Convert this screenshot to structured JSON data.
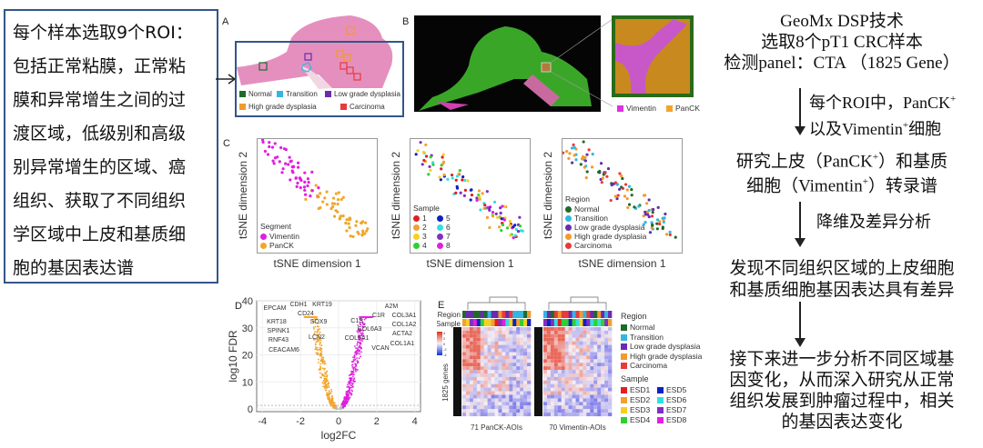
{
  "left_box": {
    "lines": [
      "每个样本选取9个ROI：",
      "包括正常粘膜，正常粘",
      "膜和异常增生之间的过",
      "渡区域，低级别和高级",
      "别异常增生的区域、癌",
      "组织、获取了不同组织",
      "学区域中上皮和基质细",
      "胞的基因表达谱"
    ]
  },
  "panel_a": {
    "label": "A",
    "legend": [
      {
        "name": "Normal",
        "color": "#1e6b2a"
      },
      {
        "name": "Transition",
        "color": "#33b6e0"
      },
      {
        "name": "Low grade dysplasia",
        "color": "#6a2bb0"
      },
      {
        "name": "High grade dysplasia",
        "color": "#f39a2b"
      },
      {
        "name": "Carcinoma",
        "color": "#e83a3a"
      }
    ]
  },
  "panel_b": {
    "label": "B",
    "legend": [
      {
        "name": "Vimentin",
        "color": "#e030e0"
      },
      {
        "name": "PanCK",
        "color": "#f2a52a"
      }
    ]
  },
  "panel_c": {
    "label": "C",
    "plots": [
      {
        "xlabel": "tSNE dimension 1",
        "ylabel": "tSNE dimension 2",
        "legend_title": "Segment",
        "legend": [
          {
            "name": "Vimentin",
            "color": "#e01ee0"
          },
          {
            "name": "PanCK",
            "color": "#f2a52a"
          }
        ]
      },
      {
        "xlabel": "tSNE dimension 1",
        "ylabel": "tSNE dimension 2",
        "legend_title": "Sample",
        "legend": [
          {
            "name": "1",
            "color": "#e02020"
          },
          {
            "name": "2",
            "color": "#f2a030"
          },
          {
            "name": "3",
            "color": "#f5d020"
          },
          {
            "name": "4",
            "color": "#30d030"
          },
          {
            "name": "5",
            "color": "#1020c0"
          },
          {
            "name": "6",
            "color": "#30e0e0"
          },
          {
            "name": "7",
            "color": "#8030c0"
          },
          {
            "name": "8",
            "color": "#e020e0"
          }
        ]
      },
      {
        "xlabel": "tSNE dimension 1",
        "ylabel": "tSNE dimension 2",
        "legend_title": "Region",
        "legend": [
          {
            "name": "Normal",
            "color": "#1e6b2a"
          },
          {
            "name": "Transition",
            "color": "#33b6e0"
          },
          {
            "name": "Low grade dysplasia",
            "color": "#6a2bb0"
          },
          {
            "name": "High grade dysplasia",
            "color": "#f39a2b"
          },
          {
            "name": "Carcinoma",
            "color": "#e83a3a"
          }
        ]
      }
    ]
  },
  "panel_d": {
    "label": "D",
    "chart_data": {
      "type": "scatter",
      "title": "",
      "xlabel": "log2FC",
      "ylabel": "log10 FDR",
      "xlim": [
        -4.3,
        4.3
      ],
      "ylim": [
        -1,
        40
      ],
      "xticks": [
        "-4",
        "-2",
        "0",
        "2",
        "4"
      ],
      "xtick_values": [
        -4,
        -2,
        0,
        2,
        4
      ],
      "yticks": [
        "0",
        "10",
        "20",
        "30",
        "40"
      ],
      "ytick_values": [
        0,
        10,
        20,
        30,
        40
      ],
      "down_color": "#f2a52a",
      "up_color": "#e01ee0",
      "down_genes": [
        "EPCAM",
        "CDH1",
        "KRT19",
        "CD24",
        "KRT18",
        "SOX9",
        "SPINK1",
        "RNF43",
        "LCN2",
        "CEACAM6"
      ],
      "up_genes": [
        "A2M",
        "C1R",
        "COL3A1",
        "C1S",
        "COL1A2",
        "COL6A3",
        "ACTA2",
        "COL5A1",
        "VCAN",
        "COL1A1"
      ]
    }
  },
  "panel_e": {
    "label": "E",
    "row_labels": [
      "Region",
      "Sample"
    ],
    "y_label": "1825 genes",
    "heatmaps": [
      "71 PanCK-AOIs",
      "70 Vimentin-AOIs"
    ],
    "scale_ticks": [
      "4",
      "2",
      "0",
      "-2",
      "-4"
    ],
    "legend_region_title": "Region",
    "legend_region": [
      {
        "name": "Normal",
        "color": "#1e6b2a"
      },
      {
        "name": "Transition",
        "color": "#33b6e0"
      },
      {
        "name": "Low grade dysplasia",
        "color": "#6a2bb0"
      },
      {
        "name": "High grade dysplasia",
        "color": "#f39a2b"
      },
      {
        "name": "Carcinoma",
        "color": "#e83a3a"
      }
    ],
    "legend_sample_title": "Sample",
    "legend_sample": [
      {
        "name": "ESD1",
        "color": "#e02020"
      },
      {
        "name": "ESD5",
        "color": "#1020c0"
      },
      {
        "name": "ESD2",
        "color": "#f2a030"
      },
      {
        "name": "ESD6",
        "color": "#30e0e0"
      },
      {
        "name": "ESD3",
        "color": "#f5d020"
      },
      {
        "name": "ESD7",
        "color": "#8030c0"
      },
      {
        "name": "ESD4",
        "color": "#30d030"
      },
      {
        "name": "ESD8",
        "color": "#e020e0"
      }
    ]
  },
  "flow": {
    "step1": [
      "GeoMx DSP技术",
      "选取8个pT1 CRC样本",
      "检测panel：CTA （1825 Gene）"
    ],
    "arrow1_a": "每个ROI中，PanCK",
    "arrow1_b_pre": "以及Vimentin",
    "arrow1_b_post": "细胞",
    "plus": "+",
    "step2_a_pre": "研究上皮（PanCK",
    "step2_a_post": "）和基质",
    "step2_b_pre": "细胞（Vimentin",
    "step2_b_post": "）转录谱",
    "arrow2": "降维及差异分析",
    "step3": [
      "发现不同组织区域的上皮细胞",
      "和基质细胞基因表达具有差异"
    ],
    "step4": [
      "接下来进一步分析不同区域基",
      "因变化，从而深入研究从正常",
      "组织发展到肿瘤过程中，相关",
      "的基因表达变化"
    ]
  }
}
